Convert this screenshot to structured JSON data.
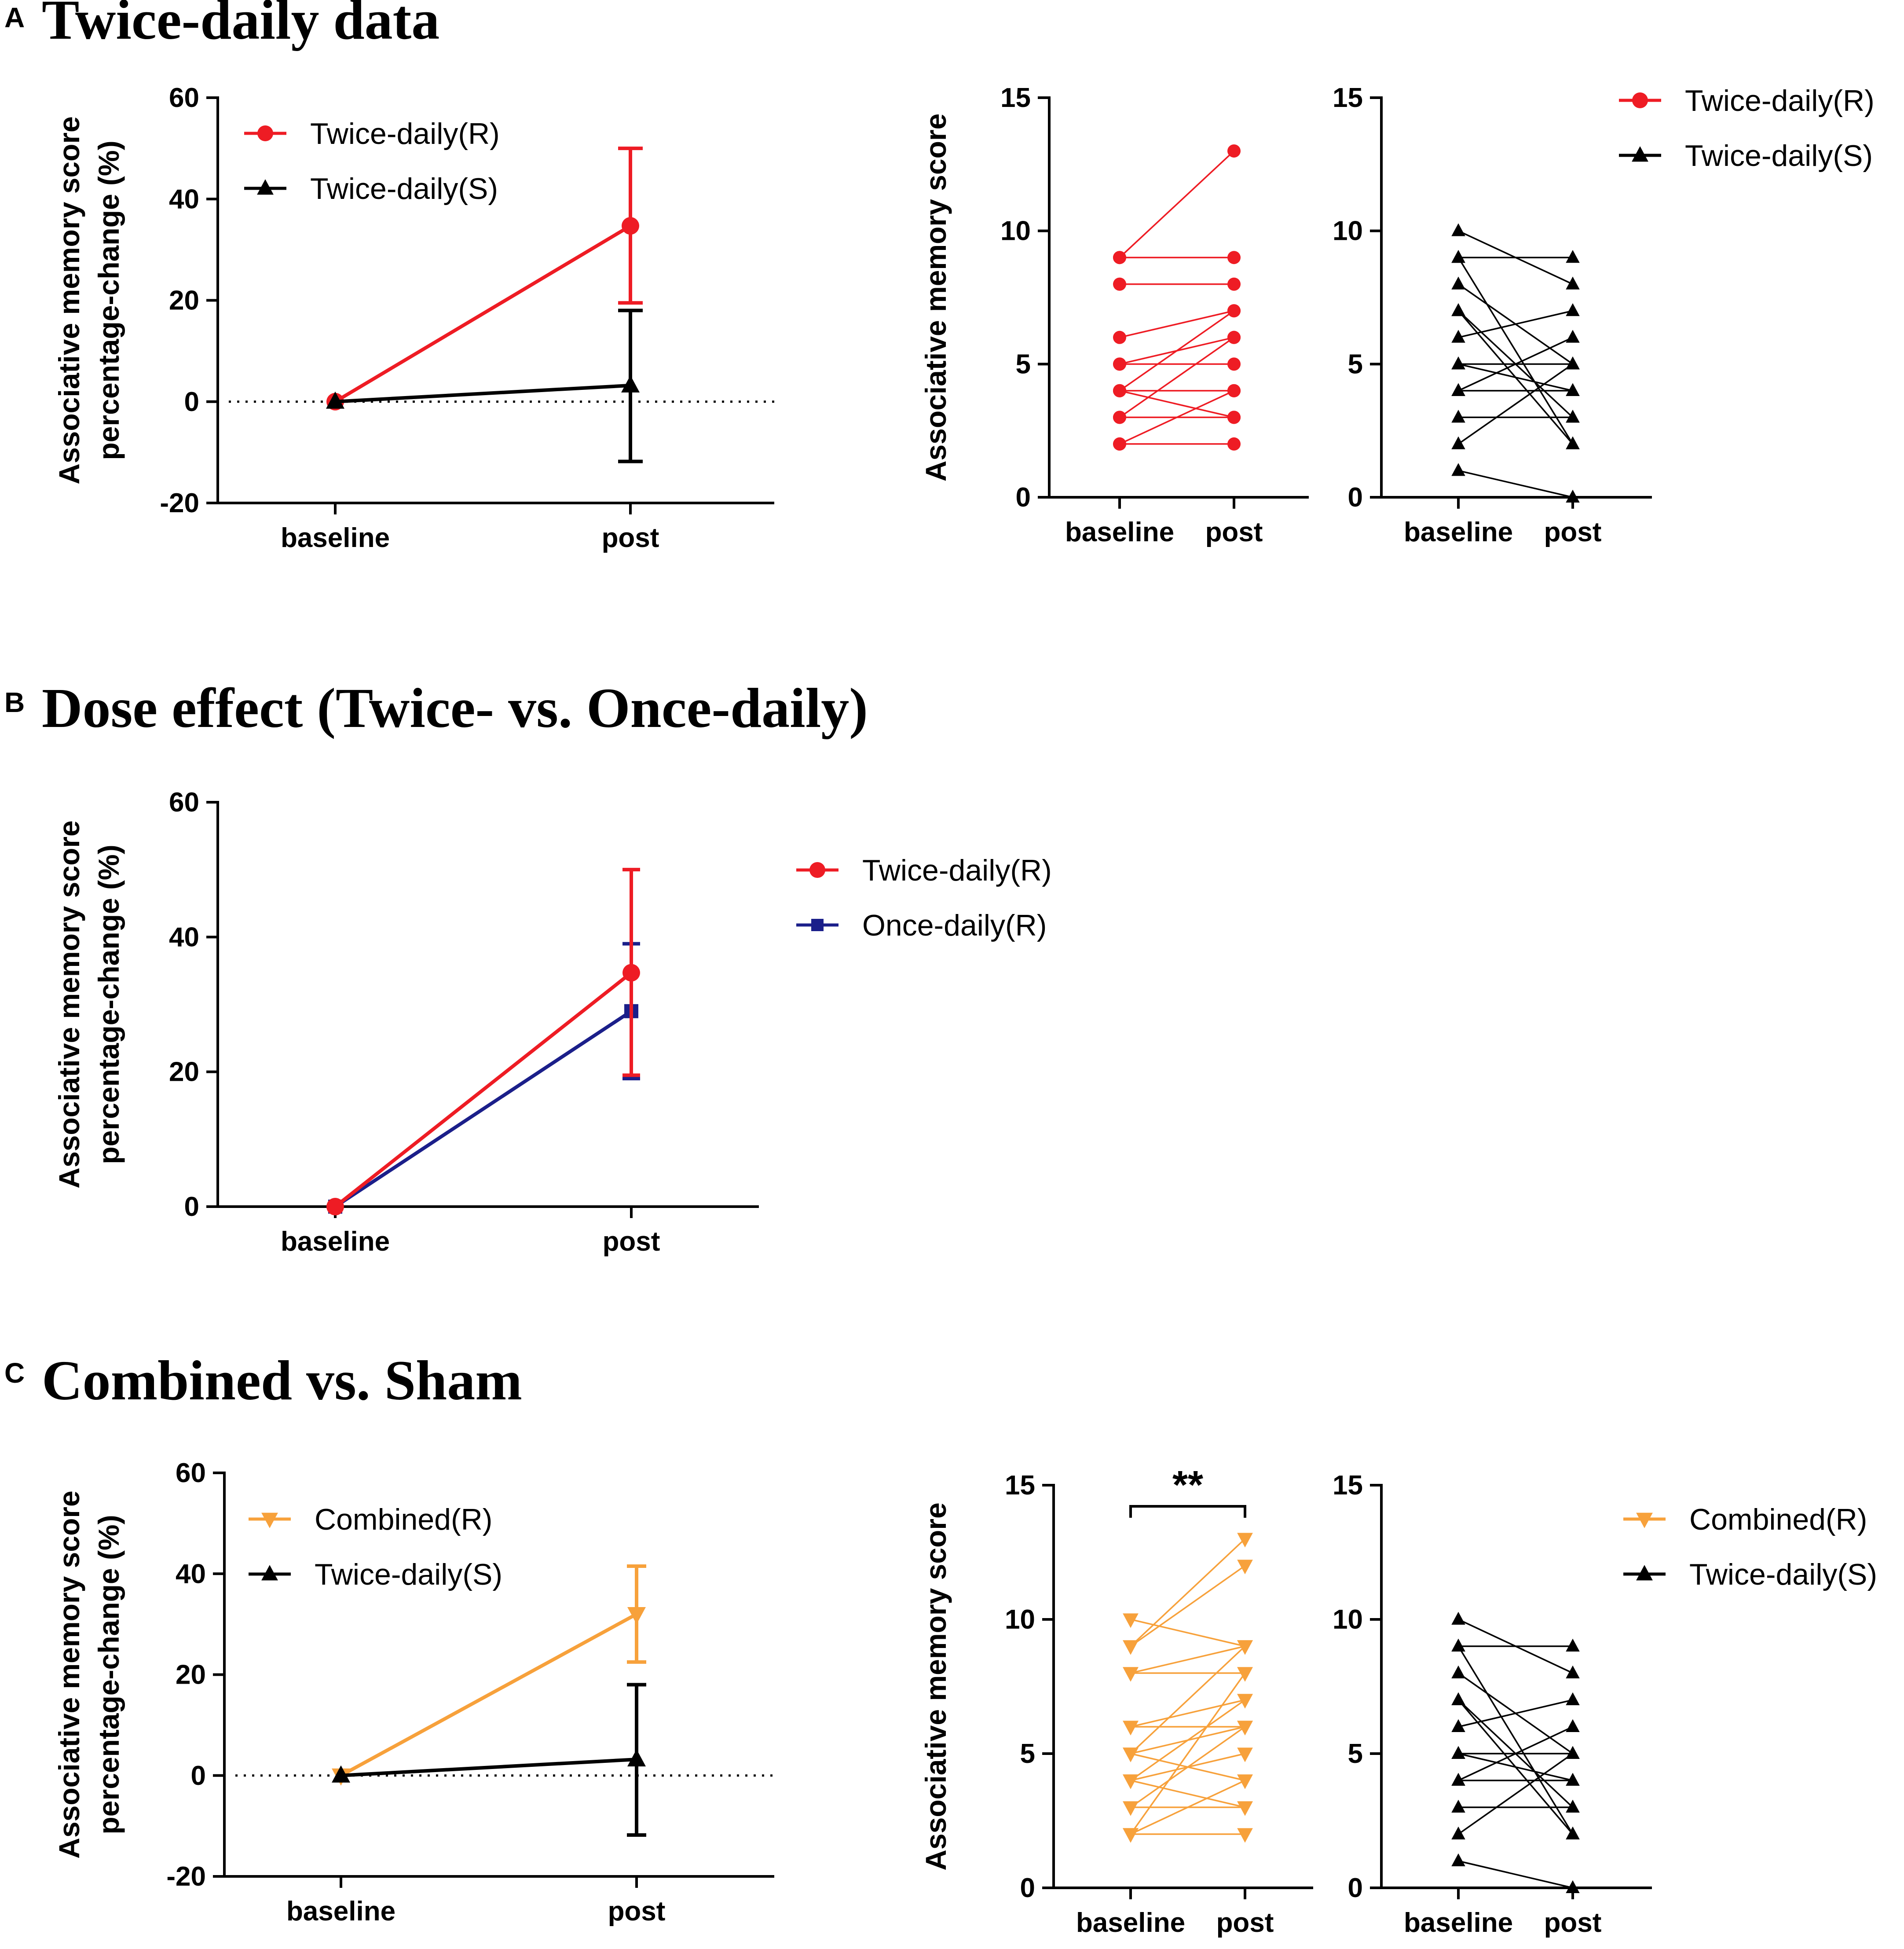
{
  "panels": {
    "A": {
      "letter": "A",
      "title": "Twice-daily data"
    },
    "B": {
      "letter": "B",
      "title": "Dose effect (Twice- vs. Once-daily)"
    },
    "C": {
      "letter": "C",
      "title": "Combined vs. Sham"
    }
  },
  "colors": {
    "red": "#ee1c24",
    "black": "#000000",
    "navy": "#1b1f8a",
    "orange": "#f7a13b"
  },
  "chart_data": [
    {
      "id": "A1",
      "type": "line",
      "title": "",
      "xlabel": "",
      "ylabel": "Associative memory score percentage-change (%)",
      "ylabel_lines": [
        "Associative memory score",
        "percentage-change (%)"
      ],
      "categories": [
        "baseline",
        "post"
      ],
      "ylim": [
        -20,
        60
      ],
      "yticks": [
        -20,
        0,
        20,
        40,
        60
      ],
      "zero_line": true,
      "series": [
        {
          "name": "Twice-daily(R)",
          "color": "#ee1c24",
          "marker": "circle",
          "values": [
            0,
            34.7
          ],
          "err_low": [
            0,
            19.5
          ],
          "err_high": [
            0,
            50
          ]
        },
        {
          "name": "Twice-daily(S)",
          "color": "#000000",
          "marker": "triangle",
          "values": [
            0,
            3.2
          ],
          "err_low": [
            0,
            -11.8
          ],
          "err_high": [
            0,
            18
          ]
        }
      ]
    },
    {
      "id": "A2",
      "type": "line",
      "title": "",
      "xlabel": "",
      "ylabel": "Associative memory score",
      "ylabel_lines": [
        "Associative memory score"
      ],
      "categories": [
        "baseline",
        "post"
      ],
      "ylim": [
        0,
        15
      ],
      "yticks": [
        0,
        5,
        10,
        15
      ],
      "series_name": "Twice-daily(R)",
      "color": "#ee1c24",
      "marker": "circle",
      "pairs": [
        [
          9,
          9
        ],
        [
          9,
          13
        ],
        [
          8,
          8
        ],
        [
          6,
          7
        ],
        [
          5,
          6
        ],
        [
          5,
          5
        ],
        [
          4,
          4
        ],
        [
          4,
          7
        ],
        [
          4,
          3
        ],
        [
          3,
          6
        ],
        [
          3,
          3
        ],
        [
          2,
          4
        ],
        [
          2,
          2
        ]
      ]
    },
    {
      "id": "A3",
      "type": "line",
      "title": "",
      "xlabel": "",
      "ylabel": "",
      "categories": [
        "baseline",
        "post"
      ],
      "ylim": [
        0,
        15
      ],
      "yticks": [
        0,
        5,
        10,
        15
      ],
      "series_name": "Twice-daily(S)",
      "color": "#000000",
      "marker": "triangle",
      "pairs": [
        [
          10,
          8
        ],
        [
          9,
          9
        ],
        [
          9,
          2
        ],
        [
          8,
          5
        ],
        [
          7,
          3
        ],
        [
          7,
          2
        ],
        [
          6,
          7
        ],
        [
          5,
          5
        ],
        [
          5,
          4
        ],
        [
          4,
          4
        ],
        [
          4,
          6
        ],
        [
          3,
          3
        ],
        [
          2,
          5
        ],
        [
          1,
          0
        ]
      ],
      "legend": [
        {
          "name": "Twice-daily(R)",
          "color": "#ee1c24",
          "marker": "circle"
        },
        {
          "name": "Twice-daily(S)",
          "color": "#000000",
          "marker": "triangle"
        }
      ]
    },
    {
      "id": "B1",
      "type": "line",
      "title": "",
      "xlabel": "",
      "ylabel": "Associative memory score percentage-change (%)",
      "ylabel_lines": [
        "Associative memory score",
        "percentage-change (%)"
      ],
      "categories": [
        "baseline",
        "post"
      ],
      "ylim": [
        0,
        60
      ],
      "yticks": [
        0,
        20,
        40,
        60
      ],
      "zero_line": false,
      "series": [
        {
          "name": "Once-daily(R)",
          "color": "#1b1f8a",
          "marker": "square",
          "values": [
            0,
            29
          ],
          "err_low": [
            0,
            19
          ],
          "err_high": [
            0,
            39
          ]
        },
        {
          "name": "Twice-daily(R)",
          "color": "#ee1c24",
          "marker": "circle",
          "values": [
            0,
            34.7
          ],
          "err_low": [
            0,
            19.5
          ],
          "err_high": [
            0,
            50
          ]
        }
      ],
      "legend": [
        {
          "name": "Twice-daily(R)",
          "color": "#ee1c24",
          "marker": "circle"
        },
        {
          "name": "Once-daily(R)",
          "color": "#1b1f8a",
          "marker": "square"
        }
      ]
    },
    {
      "id": "C1",
      "type": "line",
      "title": "",
      "xlabel": "",
      "ylabel": "Associative memory score percentage-change (%)",
      "ylabel_lines": [
        "Associative memory score",
        "percentage-change (%)"
      ],
      "categories": [
        "baseline",
        "post"
      ],
      "ylim": [
        -20,
        60
      ],
      "yticks": [
        -20,
        0,
        20,
        40,
        60
      ],
      "zero_line": true,
      "series": [
        {
          "name": "Combined(R)",
          "color": "#f7a13b",
          "marker": "triangle-down",
          "values": [
            0,
            32
          ],
          "err_low": [
            0,
            22.5
          ],
          "err_high": [
            0,
            41.5
          ]
        },
        {
          "name": "Twice-daily(S)",
          "color": "#000000",
          "marker": "triangle",
          "values": [
            0,
            3.2
          ],
          "err_low": [
            0,
            -11.8
          ],
          "err_high": [
            0,
            18
          ]
        }
      ]
    },
    {
      "id": "C2",
      "type": "line",
      "title": "",
      "xlabel": "",
      "ylabel": "Associative memory score",
      "ylabel_lines": [
        "Associative memory score"
      ],
      "categories": [
        "baseline",
        "post"
      ],
      "ylim": [
        0,
        15
      ],
      "yticks": [
        0,
        5,
        10,
        15
      ],
      "significance": "**",
      "series_name": "Combined(R)",
      "color": "#f7a13b",
      "marker": "triangle-down",
      "pairs": [
        [
          10,
          9
        ],
        [
          9,
          13
        ],
        [
          9,
          12
        ],
        [
          8,
          8
        ],
        [
          8,
          9
        ],
        [
          6,
          7
        ],
        [
          6,
          6
        ],
        [
          5,
          9
        ],
        [
          5,
          4
        ],
        [
          5,
          6
        ],
        [
          4,
          5
        ],
        [
          4,
          7
        ],
        [
          4,
          3
        ],
        [
          3,
          6
        ],
        [
          3,
          3
        ],
        [
          2,
          4
        ],
        [
          2,
          2
        ],
        [
          2,
          8
        ]
      ]
    },
    {
      "id": "C3",
      "type": "line",
      "title": "",
      "xlabel": "",
      "ylabel": "",
      "categories": [
        "baseline",
        "post"
      ],
      "ylim": [
        0,
        15
      ],
      "yticks": [
        0,
        5,
        10,
        15
      ],
      "series_name": "Twice-daily(S)",
      "color": "#000000",
      "marker": "triangle",
      "pairs": [
        [
          10,
          8
        ],
        [
          9,
          9
        ],
        [
          9,
          2
        ],
        [
          8,
          5
        ],
        [
          7,
          3
        ],
        [
          7,
          2
        ],
        [
          6,
          7
        ],
        [
          5,
          5
        ],
        [
          5,
          4
        ],
        [
          4,
          4
        ],
        [
          4,
          6
        ],
        [
          3,
          3
        ],
        [
          2,
          5
        ],
        [
          1,
          0
        ]
      ],
      "legend": [
        {
          "name": "Combined(R)",
          "color": "#f7a13b",
          "marker": "triangle-down"
        },
        {
          "name": "Twice-daily(S)",
          "color": "#000000",
          "marker": "triangle"
        }
      ]
    }
  ]
}
